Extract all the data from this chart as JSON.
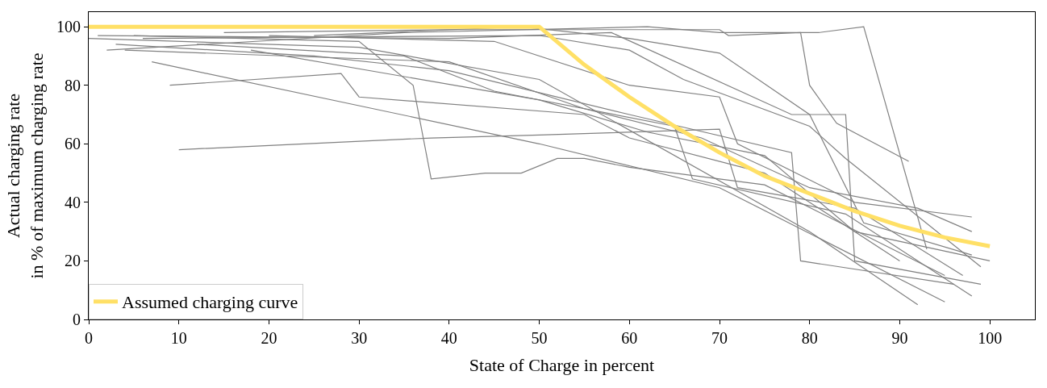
{
  "chart_data": {
    "type": "line",
    "xlabel": "State of Charge in percent",
    "ylabel": "Actual charging rate\nin % of maximum charging rate",
    "xlim": [
      0,
      105
    ],
    "xticks": [
      0,
      10,
      20,
      30,
      40,
      50,
      60,
      70,
      80,
      90,
      100
    ],
    "ylim": [
      0,
      105
    ],
    "yticks": [
      0,
      20,
      40,
      60,
      80,
      100
    ],
    "legend": "bottom left",
    "marker": "none",
    "line_style": "solid",
    "series": [
      {
        "color": "#808080",
        "x": [
          10,
          38,
          50,
          70,
          72,
          85,
          97
        ],
        "values": [
          58,
          62,
          63,
          65,
          45,
          38,
          15
        ]
      },
      {
        "color": "#808080",
        "x": [
          0,
          30,
          50,
          80,
          92
        ],
        "values": [
          96,
          93,
          82,
          30,
          5
        ]
      },
      {
        "color": "#808080",
        "x": [
          7,
          50,
          70,
          95
        ],
        "values": [
          88,
          60,
          45,
          6
        ]
      },
      {
        "color": "#808080",
        "x": [
          9,
          28,
          30,
          55,
          60,
          75,
          90
        ],
        "values": [
          80,
          84,
          76,
          70,
          62,
          50,
          20
        ]
      },
      {
        "color": "#808080",
        "x": [
          2,
          35,
          62,
          70,
          81,
          86,
          93
        ],
        "values": [
          92,
          98,
          100,
          98,
          98,
          100,
          24
        ]
      },
      {
        "color": "#808080",
        "x": [
          15,
          40,
          70,
          71,
          79,
          80,
          83,
          91
        ],
        "values": [
          98,
          99,
          99,
          97,
          98,
          80,
          67,
          54
        ]
      },
      {
        "color": "#808080",
        "x": [
          20,
          45,
          60,
          70,
          72,
          85,
          98
        ],
        "values": [
          97,
          95,
          80,
          76,
          60,
          40,
          35
        ]
      },
      {
        "color": "#808080",
        "x": [
          5,
          30,
          36,
          38,
          44,
          48,
          52,
          55,
          60,
          75,
          95
        ],
        "values": [
          97,
          95,
          80,
          48,
          50,
          50,
          55,
          55,
          52,
          46,
          15
        ]
      },
      {
        "color": "#808080",
        "x": [
          3,
          25,
          40,
          60,
          78,
          79,
          96
        ],
        "values": [
          94,
          90,
          85,
          70,
          57,
          20,
          12
        ]
      },
      {
        "color": "#808080",
        "x": [
          1,
          40,
          58,
          78,
          84,
          85,
          99
        ],
        "values": [
          97,
          96,
          98,
          70,
          70,
          20,
          12
        ]
      },
      {
        "color": "#808080",
        "x": [
          12,
          35,
          45,
          65,
          67,
          84,
          98
        ],
        "values": [
          94,
          90,
          78,
          66,
          48,
          36,
          8
        ]
      },
      {
        "color": "#808080",
        "x": [
          6,
          50,
          60,
          66,
          80,
          84,
          99
        ],
        "values": [
          96,
          97,
          92,
          82,
          66,
          55,
          18
        ]
      },
      {
        "color": "#808080",
        "x": [
          18,
          50,
          62,
          75,
          85,
          100
        ],
        "values": [
          92,
          75,
          64,
          56,
          30,
          20
        ]
      },
      {
        "color": "#808080",
        "x": [
          4,
          40,
          55,
          68,
          80,
          92,
          98
        ],
        "values": [
          92,
          88,
          72,
          62,
          45,
          38,
          30
        ]
      },
      {
        "color": "#808080",
        "x": [
          25,
          48,
          60,
          70,
          80,
          86,
          98
        ],
        "values": [
          97,
          100,
          96,
          91,
          70,
          33,
          22
        ]
      },
      {
        "name": "Assumed charging curve",
        "color": "#ffe066",
        "x": [
          0,
          50,
          55,
          60,
          65,
          70,
          75,
          80,
          85,
          90,
          95,
          100
        ],
        "values": [
          100,
          100,
          87,
          76,
          66,
          57,
          49,
          43,
          37,
          32,
          28,
          25
        ]
      }
    ]
  }
}
